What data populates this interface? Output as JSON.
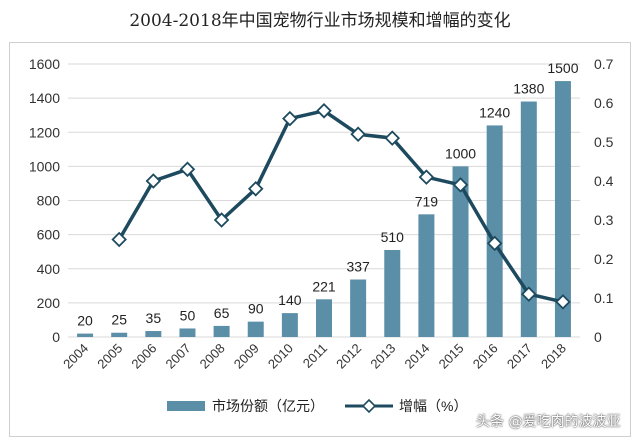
{
  "chart_data": {
    "title": "2004-2018年中国宠物行业市场规模和增幅的变化",
    "type": "bar+line",
    "categories": [
      "2004",
      "2005",
      "2006",
      "2007",
      "2008",
      "2009",
      "2010",
      "2011",
      "2012",
      "2013",
      "2014",
      "2015",
      "2016",
      "2017",
      "2018"
    ],
    "series": [
      {
        "name": "市场份额（亿元）",
        "type": "bar",
        "axis": "left",
        "values": [
          20,
          25,
          35,
          50,
          65,
          90,
          140,
          221,
          337,
          510,
          719,
          1000,
          1240,
          1380,
          1500
        ],
        "labels": [
          "20",
          "25",
          "35",
          "50",
          "65",
          "90",
          "140",
          "221",
          "337",
          "510",
          "719",
          "1000",
          "1240",
          "1380",
          "1500"
        ],
        "color": "#5b8fa8"
      },
      {
        "name": "增幅（%）",
        "type": "line",
        "axis": "right",
        "values": [
          null,
          0.25,
          0.4,
          0.43,
          0.3,
          0.38,
          0.56,
          0.58,
          0.52,
          0.51,
          0.41,
          0.39,
          0.24,
          0.11,
          0.09
        ],
        "color": "#1d4a5e"
      }
    ],
    "y_left": {
      "min": 0,
      "max": 1600,
      "ticks": [
        "0",
        "200",
        "400",
        "600",
        "800",
        "1000",
        "1200",
        "1400",
        "1600"
      ]
    },
    "y_right": {
      "min": 0,
      "max": 0.7,
      "ticks": [
        "0",
        "0.1",
        "0.2",
        "0.3",
        "0.4",
        "0.5",
        "0.6",
        "0.7"
      ]
    },
    "grid": true,
    "legend_position": "bottom"
  },
  "watermark": "头条 @爱吃肉的波波亚"
}
